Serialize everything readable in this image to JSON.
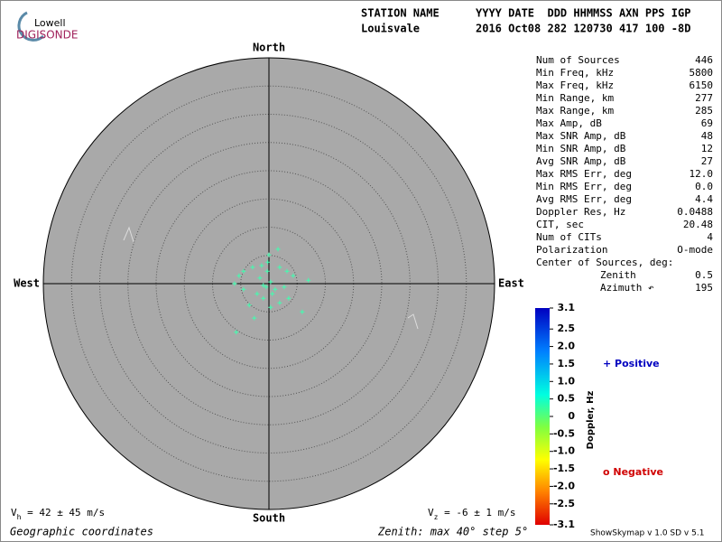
{
  "header": {
    "logo_top": "Lowell",
    "logo_bottom": "DIGISONDE",
    "col1_label": "STATION NAME",
    "col2_label": "YYYY DATE  DDD HHMMSS AXN PPS IGP",
    "station": "Louisvale",
    "record": "2016 Oct08 282 120730 417 100 -8D"
  },
  "stats": {
    "rows": [
      [
        "Num of Sources",
        "446"
      ],
      [
        "Min Freq, kHz",
        "5800"
      ],
      [
        "Max Freq, kHz",
        "6150"
      ],
      [
        "Min Range, km",
        "277"
      ],
      [
        "Max Range, km",
        "285"
      ],
      [
        "Max Amp, dB",
        "69"
      ],
      [
        "Max SNR Amp, dB",
        "48"
      ],
      [
        "Min SNR Amp, dB",
        "12"
      ],
      [
        "Avg SNR Amp, dB",
        "27"
      ],
      [
        "Max RMS Err, deg",
        "12.0"
      ],
      [
        "Min RMS Err, deg",
        "0.0"
      ],
      [
        "Avg RMS Err, deg",
        "4.4"
      ],
      [
        "Doppler Res, Hz",
        "0.0488"
      ],
      [
        "CIT, sec",
        "20.48"
      ],
      [
        "Num of CITs",
        "4"
      ],
      [
        "Polarization",
        "O-mode"
      ],
      [
        "Center of Sources, deg:",
        ""
      ]
    ],
    "center": [
      [
        "Zenith",
        "0.5"
      ],
      [
        "Azimuth ↶",
        "195"
      ]
    ]
  },
  "chart_data": {
    "type": "polar-scatter",
    "north": "North",
    "south": "South",
    "east": "East",
    "west": "West",
    "xlim": [
      -40,
      40
    ],
    "ylim": [
      -40,
      40
    ],
    "rlim": [
      0,
      40
    ],
    "rticks": [
      5,
      10,
      15,
      20,
      25,
      30,
      35,
      40
    ],
    "series": [
      {
        "color": "#40ffb0",
        "x": [
          1.6,
          0,
          -0.2,
          -4.5,
          -5.3,
          -2.9,
          -1.3,
          1.9,
          3.2,
          4.3,
          7.0,
          -6.1,
          -4.5,
          -2.1,
          -0.5,
          0.3,
          1.1,
          -1,
          1.9,
          3.5,
          5.9,
          -2.6,
          -5.8,
          0.3,
          -1.6,
          -0.3,
          0.6,
          -3.5,
          2.7,
          -1
        ],
        "values": [
          6.1,
          5.1,
          3.8,
          2.2,
          1.4,
          2.9,
          3.2,
          2.9,
          2.2,
          1.4,
          0.6,
          0,
          -1,
          -1.8,
          -0.6,
          0.3,
          -1,
          -2.6,
          -3.4,
          -2.6,
          -5,
          -6.1,
          -8.6,
          -4.2,
          1,
          2.2,
          -1.8,
          -3.8,
          -0.6,
          -0.3
        ]
      }
    ],
    "colorbar": {
      "label": "Doppler, Hz",
      "lim": [
        -3.1,
        3.1
      ],
      "ticks": [
        3.1,
        2.5,
        {
          "value": 2,
          "label": "2.0"
        },
        1.5,
        {
          "value": 1,
          "label": "1.0"
        },
        0.5,
        0,
        -0.5,
        {
          "value": -1,
          "label": "-1.0"
        },
        -1.5,
        {
          "value": -2,
          "label": "-2.0"
        },
        -2.5,
        -3.1
      ]
    },
    "positive": "+ Positive",
    "negative": "o Negative",
    "vh": [
      "V",
      "h",
      " = 42 ± 45 m/s"
    ],
    "vz": [
      "V",
      "z",
      " = -6 ± 1 m/s"
    ],
    "coords": "Geographic coordinates",
    "zenith_note": "Zenith: max 40°  step 5°",
    "version": "ShowSkymap v 1.0  SD v 5.1"
  }
}
